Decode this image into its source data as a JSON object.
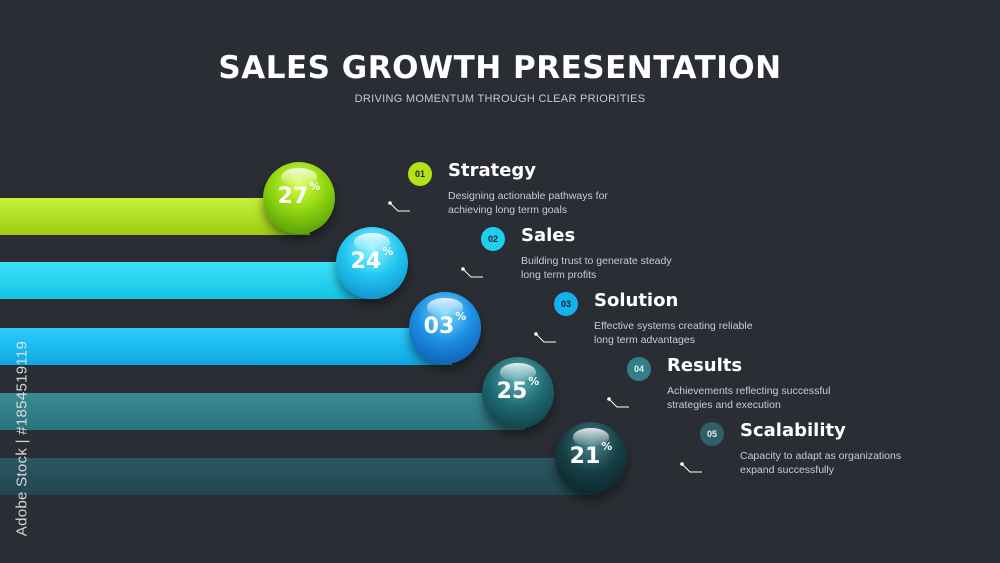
{
  "header": {
    "title": "SALES GROWTH PRESENTATION",
    "subtitle": "DRIVING MOMENTUM THROUGH CLEAR PRIORITIES"
  },
  "items": [
    {
      "number": "01",
      "value": "27",
      "unit": "%",
      "title": "Strategy",
      "desc_line1": "Designing actionable pathways for",
      "desc_line2": "achieving long term goals",
      "color": "#b4e21a"
    },
    {
      "number": "02",
      "value": "24",
      "unit": "%",
      "title": "Sales",
      "desc_line1": "Building trust to generate steady",
      "desc_line2": "long term profits",
      "color": "#1fd0ee"
    },
    {
      "number": "03",
      "value": "03",
      "unit": "%",
      "title": "Solution",
      "desc_line1": "Effective systems creating reliable",
      "desc_line2": "long term advantages",
      "color": "#12b3ec"
    },
    {
      "number": "04",
      "value": "25",
      "unit": "%",
      "title": "Results",
      "desc_line1": "Achievements reflecting successful",
      "desc_line2": "strategies and execution",
      "color": "#327f8a"
    },
    {
      "number": "05",
      "value": "21",
      "unit": "%",
      "title": "Scalability",
      "desc_line1": "Capacity to adapt as organizations",
      "desc_line2": "expand successfully",
      "color": "#244a52"
    }
  ],
  "watermark": "Adobe Stock | #1854519119"
}
